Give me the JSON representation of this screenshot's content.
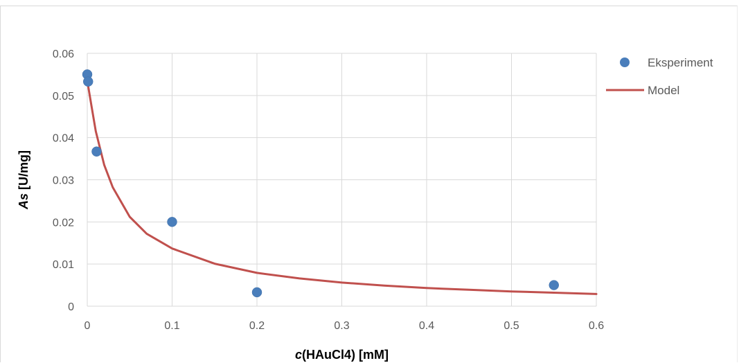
{
  "chart_data": {
    "type": "scatter",
    "title": "",
    "xlabel": {
      "italic_part": "c",
      "rest": "(HAuCl4) [mM]"
    },
    "ylabel": {
      "italic_part": "As",
      "rest": " [U/mg]"
    },
    "xlim": [
      0,
      0.6
    ],
    "ylim": [
      0,
      0.06
    ],
    "xticks": [
      0,
      0.1,
      0.2,
      0.3,
      0.4,
      0.5,
      0.6
    ],
    "xtick_labels": [
      "0",
      "0.1",
      "0.2",
      "0.3",
      "0.4",
      "0.5",
      "0.6"
    ],
    "yticks": [
      0,
      0.01,
      0.02,
      0.03,
      0.04,
      0.05,
      0.06
    ],
    "ytick_labels": [
      "0",
      "0.01",
      "0.02",
      "0.03",
      "0.04",
      "0.05",
      "0.06"
    ],
    "grid": true,
    "legend_position": "right",
    "series": [
      {
        "name": "Eksperiment",
        "kind": "markers",
        "color": "#4a7ebb",
        "points": [
          {
            "x": 0.0,
            "y": 0.055
          },
          {
            "x": 0.001,
            "y": 0.0533
          },
          {
            "x": 0.011,
            "y": 0.0367
          },
          {
            "x": 0.1,
            "y": 0.02
          },
          {
            "x": 0.2,
            "y": 0.0033
          },
          {
            "x": 0.55,
            "y": 0.005
          }
        ]
      },
      {
        "name": "Model",
        "kind": "line",
        "color": "#c0504d",
        "points": [
          {
            "x": 0.0,
            "y": 0.0535
          },
          {
            "x": 0.005,
            "y": 0.0475
          },
          {
            "x": 0.01,
            "y": 0.0415
          },
          {
            "x": 0.02,
            "y": 0.0335
          },
          {
            "x": 0.03,
            "y": 0.0282
          },
          {
            "x": 0.05,
            "y": 0.0212
          },
          {
            "x": 0.07,
            "y": 0.0172
          },
          {
            "x": 0.1,
            "y": 0.0137
          },
          {
            "x": 0.15,
            "y": 0.0101
          },
          {
            "x": 0.2,
            "y": 0.0079
          },
          {
            "x": 0.25,
            "y": 0.0066
          },
          {
            "x": 0.3,
            "y": 0.0056
          },
          {
            "x": 0.35,
            "y": 0.0049
          },
          {
            "x": 0.4,
            "y": 0.0043
          },
          {
            "x": 0.45,
            "y": 0.0039
          },
          {
            "x": 0.5,
            "y": 0.0035
          },
          {
            "x": 0.55,
            "y": 0.0032
          },
          {
            "x": 0.6,
            "y": 0.0029
          }
        ]
      }
    ]
  }
}
